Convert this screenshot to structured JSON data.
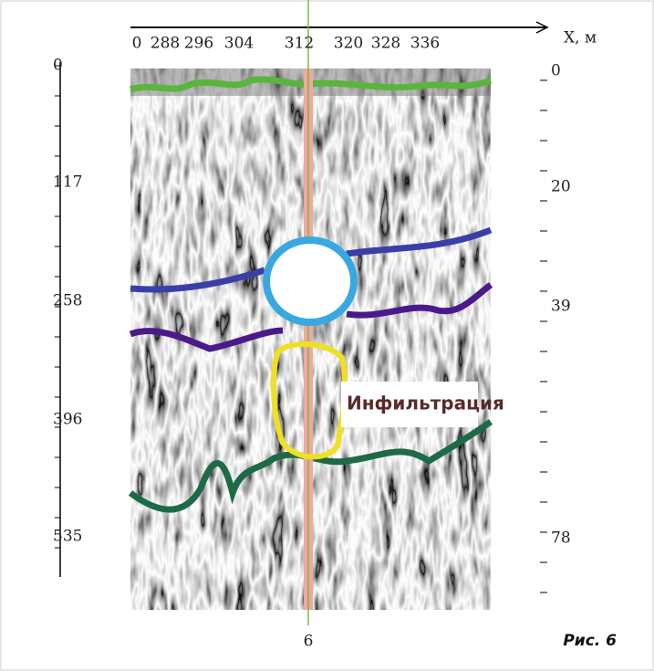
{
  "top_axis": {
    "labels": [
      "0",
      "288",
      "296",
      "304",
      "312",
      "320",
      "328",
      "336"
    ],
    "unit": "X, м"
  },
  "left_axis": {
    "labels": [
      "0",
      "117",
      "258",
      "396",
      "535"
    ]
  },
  "right_axis": {
    "labels": [
      "0",
      "20",
      "39",
      "78"
    ]
  },
  "profile_marker": "6",
  "annotation": "Инфильтрация",
  "caption": "Рис. 6"
}
